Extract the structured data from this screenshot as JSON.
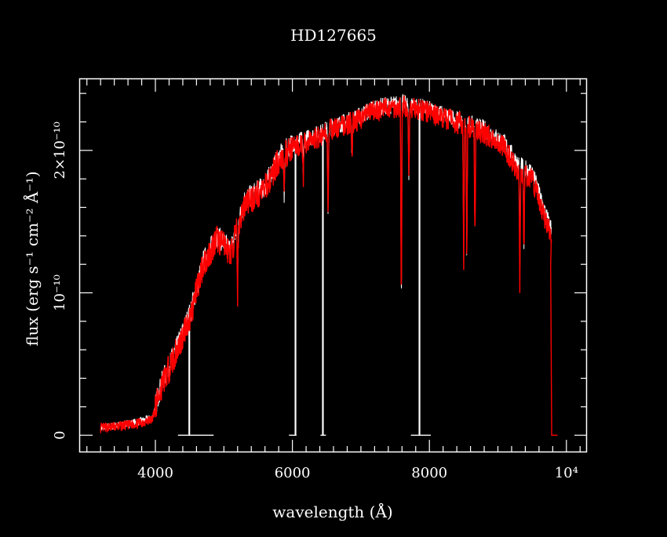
{
  "chart_data": {
    "type": "line",
    "title": "HD127665",
    "xlabel": "wavelength (Å)",
    "ylabel": "flux (erg s⁻¹ cm⁻² Å⁻¹)",
    "xlim": [
      2900,
      10300
    ],
    "ylim": [
      -1.2e-11,
      2.5e-10
    ],
    "x_ticks": {
      "major": [
        4000,
        6000,
        8000,
        10000
      ],
      "labels": [
        "4000",
        "6000",
        "8000",
        "10⁴"
      ],
      "minor_step": 200
    },
    "y_ticks": {
      "major": [
        0,
        1e-10,
        2e-10
      ],
      "labels": [
        "0",
        "10⁻¹⁰",
        "2×10⁻¹⁰"
      ],
      "minor_step": 2e-11
    },
    "grid": false,
    "colors": {
      "background": "#000000",
      "axes": "#ffffff",
      "spectrum_model": "#ffffff",
      "spectrum_observed": "#ff0000"
    },
    "series": [
      {
        "role": "white",
        "x": [
          3200,
          3600,
          3800,
          3950,
          4100,
          4300,
          4500,
          4700,
          4900,
          5100,
          5300,
          5600,
          5800,
          6000,
          6200,
          6400,
          6600,
          6900,
          7200,
          7600,
          7900,
          8200,
          8500,
          8800,
          9100,
          9300,
          9500,
          9700,
          9780
        ],
        "y": [
          5e-12,
          8e-12,
          1e-11,
          1.2e-11,
          3.8e-11,
          6e-11,
          8.5e-11,
          1.22e-10,
          1.4e-10,
          1.3e-10,
          1.65e-10,
          1.75e-10,
          1.95e-10,
          2.05e-10,
          2.08e-10,
          2.12e-10,
          2.17e-10,
          2.22e-10,
          2.3e-10,
          2.33e-10,
          2.3e-10,
          2.25e-10,
          2.2e-10,
          2.15e-10,
          2.05e-10,
          1.9e-10,
          1.85e-10,
          1.55e-10,
          1.45e-10
        ]
      },
      {
        "role": "red",
        "x": [
          3200,
          3600,
          3800,
          3950,
          4100,
          4300,
          4500,
          4700,
          4900,
          5100,
          5300,
          5600,
          5800,
          6000,
          6200,
          6400,
          6600,
          6900,
          7200,
          7600,
          7900,
          8200,
          8500,
          8800,
          9100,
          9300,
          9500,
          9700,
          9780
        ],
        "y": [
          5e-12,
          7e-12,
          9e-12,
          1.1e-11,
          3.6e-11,
          5.8e-11,
          8.2e-11,
          1.2e-10,
          1.38e-10,
          1.28e-10,
          1.62e-10,
          1.73e-10,
          1.93e-10,
          2.02e-10,
          2.05e-10,
          2.1e-10,
          2.15e-10,
          2.2e-10,
          2.28e-10,
          2.31e-10,
          2.28e-10,
          2.23e-10,
          2.18e-10,
          2.12e-10,
          2.02e-10,
          1.85e-10,
          1.8e-10,
          1.5e-10,
          1.4e-10
        ]
      }
    ],
    "absorption_lines": [
      {
        "x": 5200,
        "depth": 4.5e-11
      },
      {
        "x": 5880,
        "depth": 3.5e-11
      },
      {
        "x": 6160,
        "depth": 2.5e-11
      },
      {
        "x": 6520,
        "depth": 5.5e-11
      },
      {
        "x": 6870,
        "depth": 3e-11
      },
      {
        "x": 7590,
        "depth": 1.45e-10
      },
      {
        "x": 7700,
        "depth": 5.5e-11
      },
      {
        "x": 8500,
        "depth": 1e-10
      },
      {
        "x": 8545,
        "depth": 9.5e-11
      },
      {
        "x": 8665,
        "depth": 8e-11
      },
      {
        "x": 9320,
        "depth": 8e-11
      },
      {
        "x": 9380,
        "depth": 5.5e-11
      }
    ],
    "white_gap_segments": [
      {
        "x0": 4330,
        "x1": 4490,
        "x2": 4500,
        "x3": 4850
      },
      {
        "x0": 5950,
        "x1": 6040,
        "x2": 6050,
        "x3": 6060
      },
      {
        "x0": 6410,
        "x1": 6440,
        "x2": 6450,
        "x3": 6490
      },
      {
        "x0": 7730,
        "x1": 7850,
        "x2": 7860,
        "x3": 8020
      }
    ],
    "red_tail": {
      "x_from": 9770,
      "x_to": 9870
    }
  }
}
